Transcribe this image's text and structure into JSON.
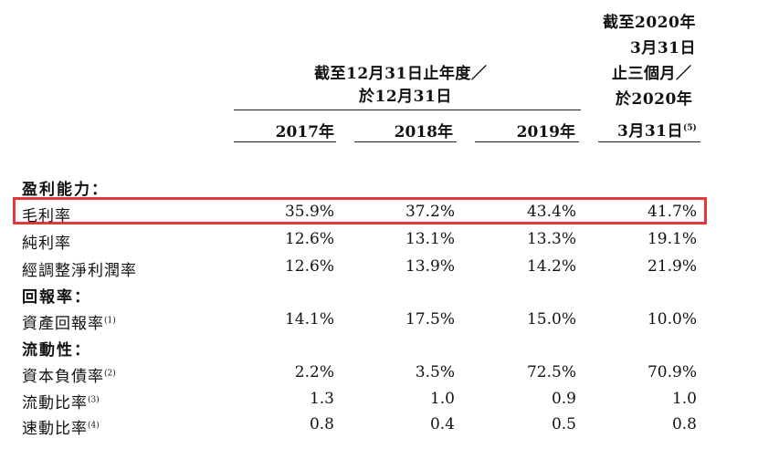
{
  "header": {
    "span_line1": "截至12月31日止年度／",
    "span_line2": "於12月31日",
    "q_line1": "截至2020年",
    "q_line2": "3月31日",
    "q_line3": "止三個月／",
    "q_line4": "於2020年",
    "q_line5": "3月31日",
    "q_note": "(5)"
  },
  "years": [
    "2017年",
    "2018年",
    "2019年"
  ],
  "sections": [
    {
      "title": "盈利能力：",
      "rows": [
        {
          "label": "毛利率",
          "note": "",
          "values": [
            "35.9%",
            "37.2%",
            "43.4%",
            "41.7%"
          ],
          "highlighted": true
        },
        {
          "label": "純利率",
          "note": "",
          "values": [
            "12.6%",
            "13.1%",
            "13.3%",
            "19.1%"
          ]
        },
        {
          "label": "經調整淨利潤率",
          "note": "",
          "values": [
            "12.6%",
            "13.9%",
            "14.2%",
            "21.9%"
          ]
        }
      ]
    },
    {
      "title": "回報率：",
      "rows": [
        {
          "label": "資產回報率",
          "note": "(1)",
          "values": [
            "14.1%",
            "17.5%",
            "15.0%",
            "10.0%"
          ]
        }
      ]
    },
    {
      "title": "流動性：",
      "rows": [
        {
          "label": "資本負債率",
          "note": "(2)",
          "values": [
            "2.2%",
            "3.5%",
            "72.5%",
            "70.9%"
          ]
        },
        {
          "label": "流動比率",
          "note": "(3)",
          "values": [
            "1.3",
            "1.0",
            "0.9",
            "1.0"
          ]
        },
        {
          "label": "速動比率",
          "note": "(4)",
          "values": [
            "0.8",
            "0.4",
            "0.5",
            "0.8"
          ]
        }
      ]
    }
  ],
  "colors": {
    "highlight": "#e23a3a"
  }
}
